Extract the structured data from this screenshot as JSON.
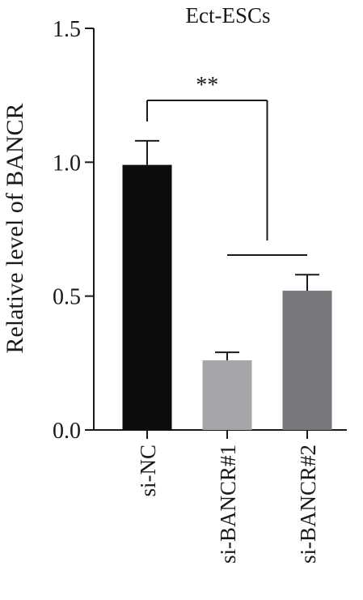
{
  "chart_data": {
    "type": "bar",
    "title": "Ect-ESCs",
    "ylabel": "Relative level of BANCR",
    "xlabel": "",
    "ylim": [
      0,
      1.5
    ],
    "yticks": [
      0.0,
      0.5,
      1.0,
      1.5
    ],
    "ytick_labels": [
      "0.0",
      "0.5",
      "1.0",
      "1.5"
    ],
    "categories": [
      "si-NC",
      "si-BANCR#1",
      "si-BANCR#2"
    ],
    "values": [
      0.99,
      0.26,
      0.52
    ],
    "errors": [
      0.09,
      0.03,
      0.06
    ],
    "colors": [
      "#0d0d0d",
      "#a4a6aa",
      "#77787b"
    ],
    "significance": {
      "label": "**",
      "from": "si-NC",
      "to": [
        "si-BANCR#1",
        "si-BANCR#2"
      ]
    },
    "grid": false,
    "legend": "none"
  }
}
